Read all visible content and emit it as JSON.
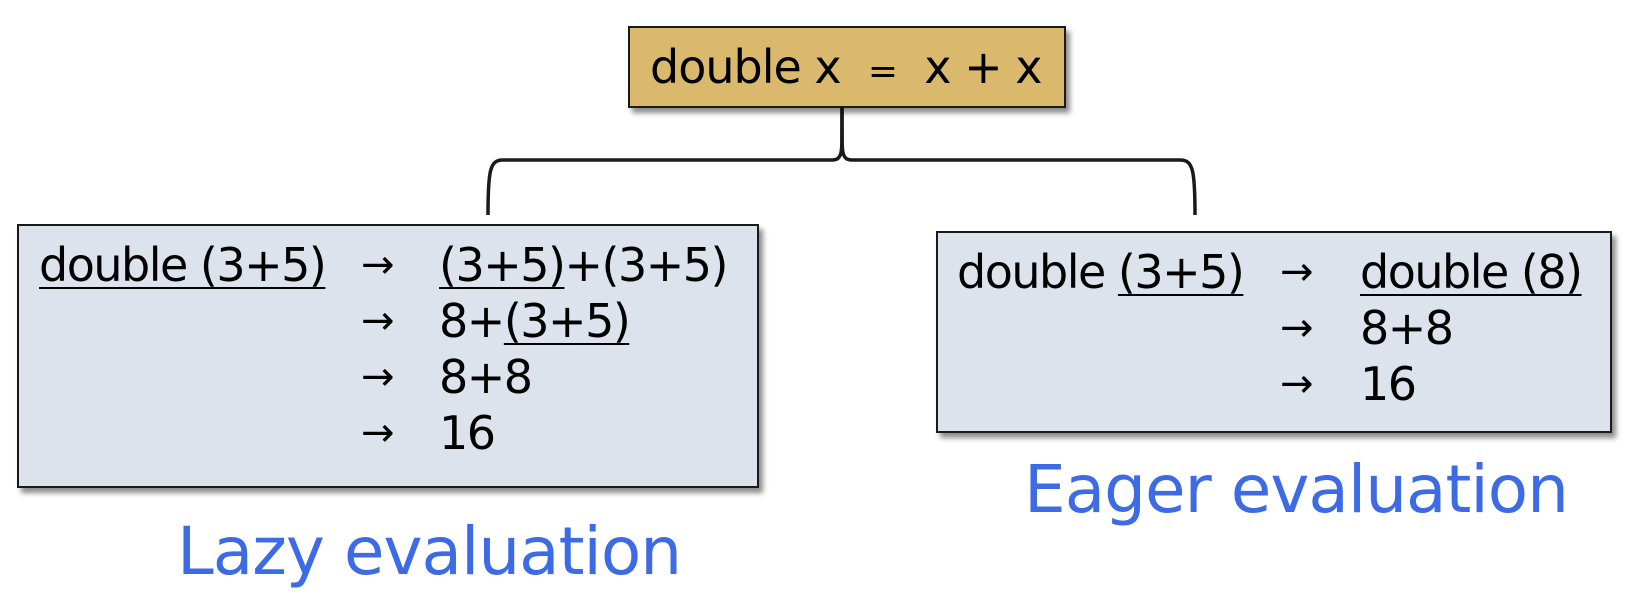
{
  "definition": {
    "lhs": "double x",
    "eq": "=",
    "rhs": "x + x"
  },
  "lazy": {
    "start": "double (3+5)",
    "steps": [
      {
        "arrow": "→",
        "parts": [
          {
            "text": "(3+5)",
            "underline": true
          },
          {
            "text": "+(3+5)",
            "underline": false
          }
        ]
      },
      {
        "arrow": "→",
        "parts": [
          {
            "text": "8+",
            "underline": false
          },
          {
            "text": "(3+5)",
            "underline": true
          }
        ]
      },
      {
        "arrow": "→",
        "parts": [
          {
            "text": "8+8",
            "underline": false
          }
        ]
      },
      {
        "arrow": "→",
        "parts": [
          {
            "text": "16",
            "underline": false
          }
        ]
      }
    ],
    "caption": "Lazy evaluation"
  },
  "eager": {
    "start_prefix": "double ",
    "start_underlined": "(3+5)",
    "steps": [
      {
        "arrow": "→",
        "parts": [
          {
            "text": "double (8)",
            "underline": true
          }
        ]
      },
      {
        "arrow": "→",
        "parts": [
          {
            "text": "8+8",
            "underline": false
          }
        ]
      },
      {
        "arrow": "→",
        "parts": [
          {
            "text": "16",
            "underline": false
          }
        ]
      }
    ],
    "caption": "Eager evaluation"
  },
  "colors": {
    "definition_fill": "#dab96d",
    "box_fill": "#dce3ed",
    "caption": "#3d6be6"
  }
}
